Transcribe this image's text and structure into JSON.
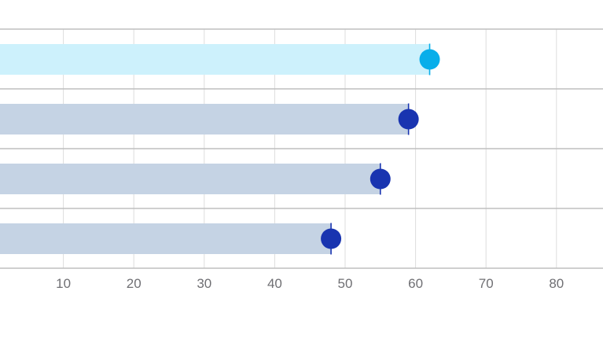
{
  "chart_data": {
    "type": "bar",
    "orientation": "horizontal",
    "title": "",
    "xlabel": "",
    "ylabel": "",
    "xlim": [
      0,
      85
    ],
    "xticks": [
      "10",
      "20",
      "30",
      "40",
      "50",
      "60",
      "70",
      "80"
    ],
    "xtick_values": [
      10,
      20,
      30,
      40,
      50,
      60,
      70,
      80
    ],
    "grid": true,
    "legend": "none",
    "series": [
      {
        "values": [
          62,
          59,
          55,
          48
        ]
      }
    ],
    "highlight_index": 0,
    "colors": {
      "bar_highlight": "#cdf1fc",
      "bar_default": "#c5d3e4",
      "dot_highlight": "#08aeea",
      "dot_default": "#1934b0",
      "grid": "#dddddd",
      "row_separator": "#bfbfbf",
      "tick_label": "#6f6f73"
    }
  }
}
